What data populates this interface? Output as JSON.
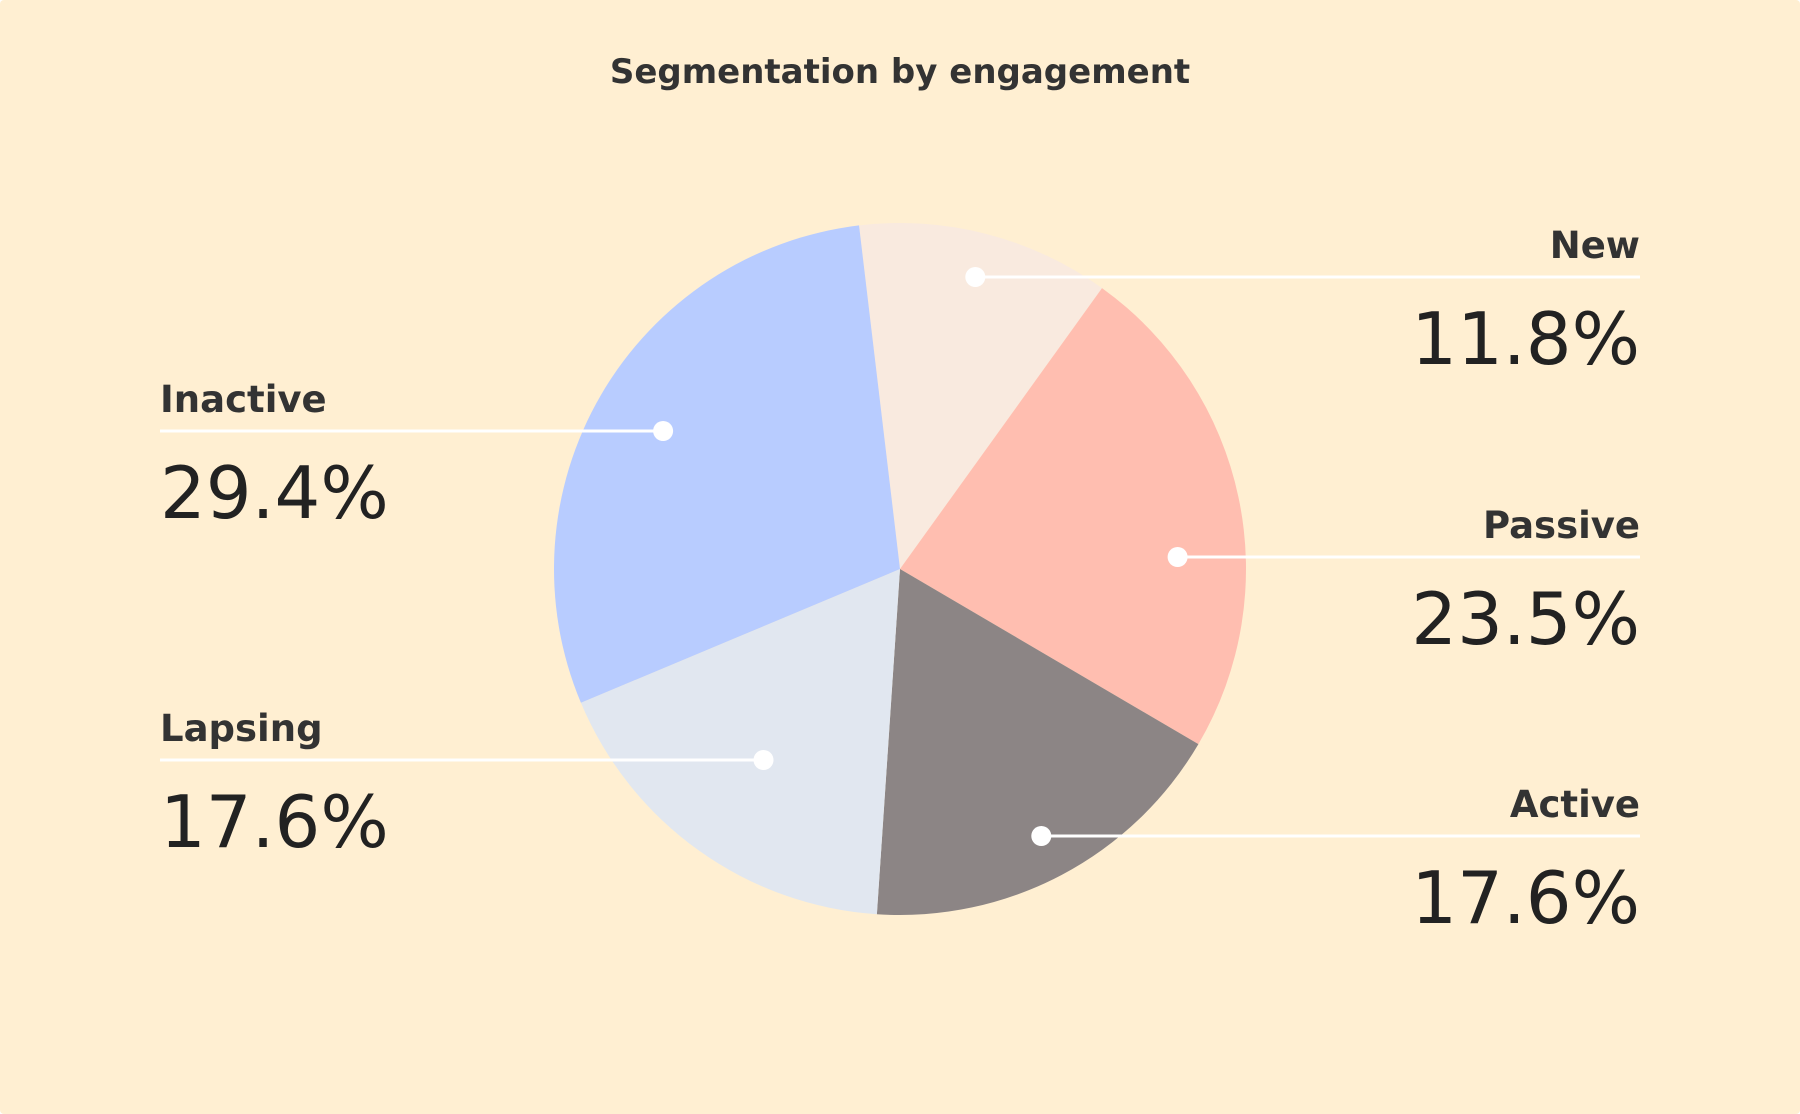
{
  "chart_data": {
    "type": "pie",
    "title": "Segmentation by engagement",
    "categories": [
      "New",
      "Passive",
      "Active",
      "Lapsing",
      "Inactive"
    ],
    "values": [
      11.8,
      23.5,
      17.6,
      17.6,
      29.4
    ],
    "value_labels": [
      "11.8%",
      "23.5%",
      "17.6%",
      "17.6%",
      "29.4%"
    ],
    "colors": [
      "#F9EADF",
      "#FFBEB0",
      "#8C8585",
      "#E1E7F0",
      "#B8CCFF"
    ],
    "start_angle_deg": -6.8,
    "direction": "clockwise",
    "legend": "none",
    "labels_placement": "outside-with-leaders"
  },
  "colors": {
    "background": "#FFEFD2",
    "text": "#333333",
    "leader": "#ffffff"
  }
}
